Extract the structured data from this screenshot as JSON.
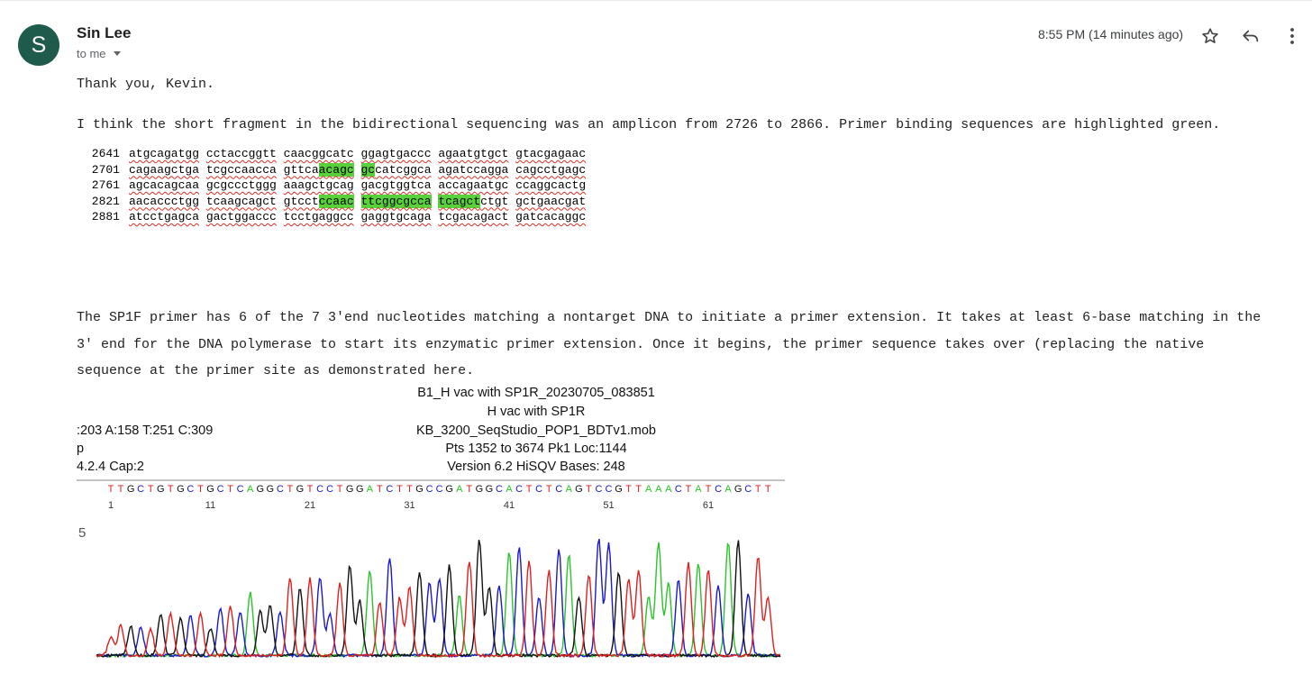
{
  "email": {
    "avatar_initial": "S",
    "sender_name": "Sin Lee",
    "recipient": "to me",
    "timestamp": "8:55 PM (14 minutes ago)",
    "greeting": "Thank you, Kevin.",
    "paragraph1": "I think the short fragment in the bidirectional sequencing was an amplicon from 2726 to 2866. Primer binding sequences are highlighted green.",
    "paragraph2_lines": [
      "The SP1F primer has 6 of the 7 3'end nucleotides matching a nontarget DNA to initiate a primer extension. It takes at least 6-base matching in the",
      "3' end for the DNA polymerase to start its enzymatic primer extension. Once it begins, the primer sequence takes over (replacing the native",
      "sequence at the primer site as demonstrated here."
    ]
  },
  "actions": {
    "star_icon": "star-outline-icon",
    "reply_icon": "reply-arrow-icon",
    "more_icon": "vertical-dots-icon"
  },
  "sequence": [
    {
      "pos": "2641",
      "segments": [
        [
          [
            "atgcagatgg",
            false
          ]
        ],
        [
          [
            "cctaccggtt",
            false
          ]
        ],
        [
          [
            "caacggcatc",
            false
          ]
        ],
        [
          [
            "ggagtgaccc",
            false
          ]
        ],
        [
          [
            "agaatgtgct",
            false
          ]
        ],
        [
          [
            "gtacgagaac",
            false
          ]
        ]
      ]
    },
    {
      "pos": "2701",
      "segments": [
        [
          [
            "cagaagctga",
            false
          ]
        ],
        [
          [
            "tcgccaacca",
            false
          ]
        ],
        [
          [
            "gttca",
            false
          ],
          [
            "acagc",
            true
          ]
        ],
        [
          [
            "gc",
            true
          ],
          [
            "catcggca",
            false
          ]
        ],
        [
          [
            "agatccagga",
            false
          ]
        ],
        [
          [
            "cagcctgagc",
            false
          ]
        ]
      ]
    },
    {
      "pos": "2761",
      "segments": [
        [
          [
            "agcacagcaa",
            false
          ]
        ],
        [
          [
            "gcgccctggg",
            false
          ]
        ],
        [
          [
            "aaagctgcag",
            false
          ]
        ],
        [
          [
            "gacgtggtca",
            false
          ]
        ],
        [
          [
            "accagaatgc",
            false
          ]
        ],
        [
          [
            "ccaggcactg",
            false
          ]
        ]
      ]
    },
    {
      "pos": "2821",
      "segments": [
        [
          [
            "aacaccctgg",
            false
          ]
        ],
        [
          [
            "tcaagcagct",
            false
          ]
        ],
        [
          [
            "gtcct",
            false
          ],
          [
            "ccaac",
            true
          ]
        ],
        [
          [
            "ttcggcgcca",
            true
          ]
        ],
        [
          [
            "tcagct",
            true
          ],
          [
            "ctgt",
            false
          ]
        ],
        [
          [
            "gctgaacgat",
            false
          ]
        ]
      ]
    },
    {
      "pos": "2881",
      "segments": [
        [
          [
            "atcctgagca",
            false
          ]
        ],
        [
          [
            "gactggaccc",
            false
          ]
        ],
        [
          [
            "tcctgaggcc",
            false
          ]
        ],
        [
          [
            "gaggtgcaga",
            false
          ]
        ],
        [
          [
            "tcgacagact",
            false
          ]
        ],
        [
          [
            "gatcacaggc",
            false
          ]
        ]
      ]
    }
  ],
  "chromatogram": {
    "title_lines": [
      "B1_H vac with SP1R_20230705_083851",
      "H vac with SP1R",
      "KB_3200_SeqStudio_POP1_BDTv1.mob",
      "Pts 1352 to 3674 Pk1 Loc:1144",
      "Version 6.2    HiSQV Bases: 248"
    ],
    "left_info": [
      ":203 A:158 T:251 C:309",
      "p",
      "4.2.4     Cap:2"
    ],
    "bases": "TTGCTGTGCTGCTCAGGCTGTCCTGGATCTTGCCGATGGCACTCTCAGTCCGTTAAACTATCAGCTT",
    "position_labels": [
      "1",
      "11",
      "21",
      "31",
      "41",
      "51",
      "61"
    ],
    "y_tick": "5",
    "colors": {
      "A": "#2bc42b",
      "C": "#1a1acc",
      "G": "#111111",
      "T": "#e02020"
    }
  }
}
